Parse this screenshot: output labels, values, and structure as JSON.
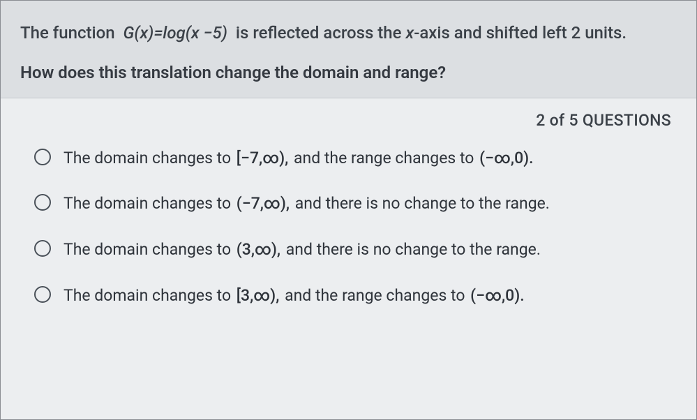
{
  "theme": {
    "prompt_bg": "#dcdfe2",
    "answers_bg": "#eceef0",
    "text_color": "#3b4148",
    "border_color": "#8a8d92",
    "radio_border": "#4a5159"
  },
  "question": {
    "line1_pre": "The function  ",
    "func": "G(x)=log(x −5)",
    "line1_post": "  is reflected across the ",
    "xaxis": "x",
    "line1_tail": "-axis and shifted left 2 units.",
    "line2": "How does this translation change the domain and range?"
  },
  "counter": "2 of 5 QUESTIONS",
  "options": [
    {
      "pre": "The domain changes to ",
      "int1": "[−7,∞),",
      "mid": " and the range changes to ",
      "int2": "(−∞,0).",
      "post": ""
    },
    {
      "pre": "The domain changes to ",
      "int1": "(−7,∞),",
      "mid": " and there is no change to the range.",
      "int2": "",
      "post": ""
    },
    {
      "pre": "The domain changes to ",
      "int1": "(3,∞),",
      "mid": " and there is no change to the range.",
      "int2": "",
      "post": ""
    },
    {
      "pre": "The domain changes to ",
      "int1": "[3,∞),",
      "mid": " and the range changes to ",
      "int2": "(−∞,0).",
      "post": ""
    }
  ]
}
